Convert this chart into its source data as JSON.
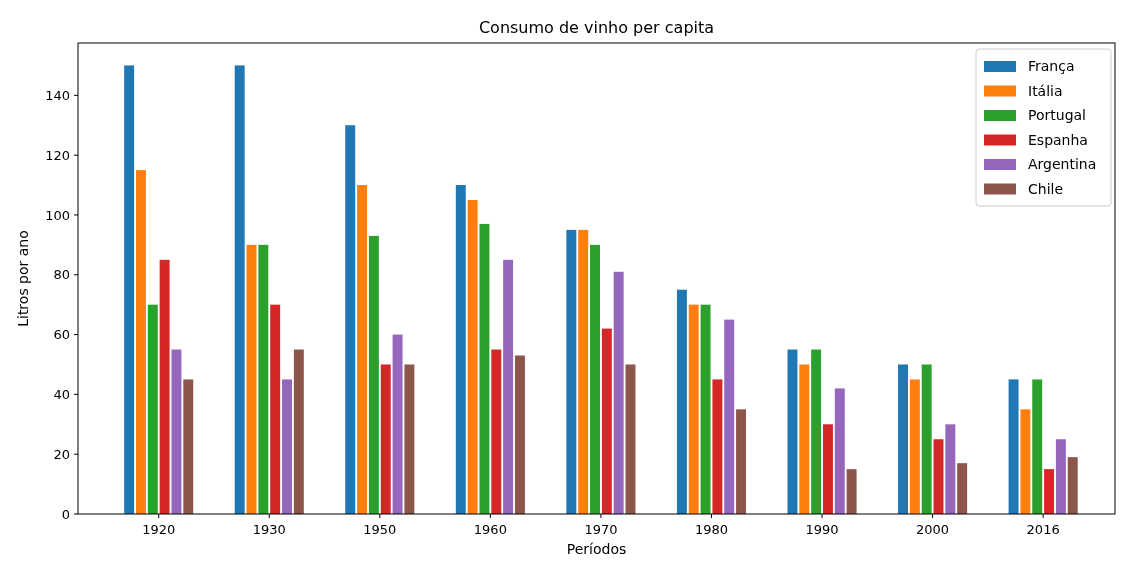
{
  "chart_data": {
    "type": "bar",
    "title": "Consumo de vinho per capita",
    "xlabel": "Períodos",
    "ylabel": "Litros por ano",
    "categories": [
      "1920",
      "1930",
      "1950",
      "1960",
      "1970",
      "1980",
      "1990",
      "2000",
      "2016"
    ],
    "series": [
      {
        "name": "França",
        "color": "#1f77b4",
        "values": [
          150,
          150,
          130,
          110,
          95,
          75,
          55,
          50,
          45
        ]
      },
      {
        "name": "Itália",
        "color": "#ff7f0e",
        "values": [
          115,
          90,
          110,
          105,
          95,
          70,
          50,
          45,
          35
        ]
      },
      {
        "name": "Portugal",
        "color": "#2ca02c",
        "values": [
          70,
          90,
          93,
          97,
          90,
          70,
          55,
          50,
          45
        ]
      },
      {
        "name": "Espanha",
        "color": "#d62728",
        "values": [
          85,
          70,
          50,
          55,
          62,
          45,
          30,
          25,
          15
        ]
      },
      {
        "name": "Argentina",
        "color": "#9467bd",
        "values": [
          55,
          45,
          60,
          85,
          81,
          65,
          42,
          30,
          25
        ]
      },
      {
        "name": "Chile",
        "color": "#8c564b",
        "values": [
          45,
          55,
          50,
          53,
          50,
          35,
          15,
          17,
          19
        ]
      }
    ],
    "ylim": [
      0,
      157.5
    ],
    "yticks": [
      0,
      20,
      40,
      60,
      80,
      100,
      120,
      140
    ],
    "grid": false,
    "legend": "top right"
  }
}
